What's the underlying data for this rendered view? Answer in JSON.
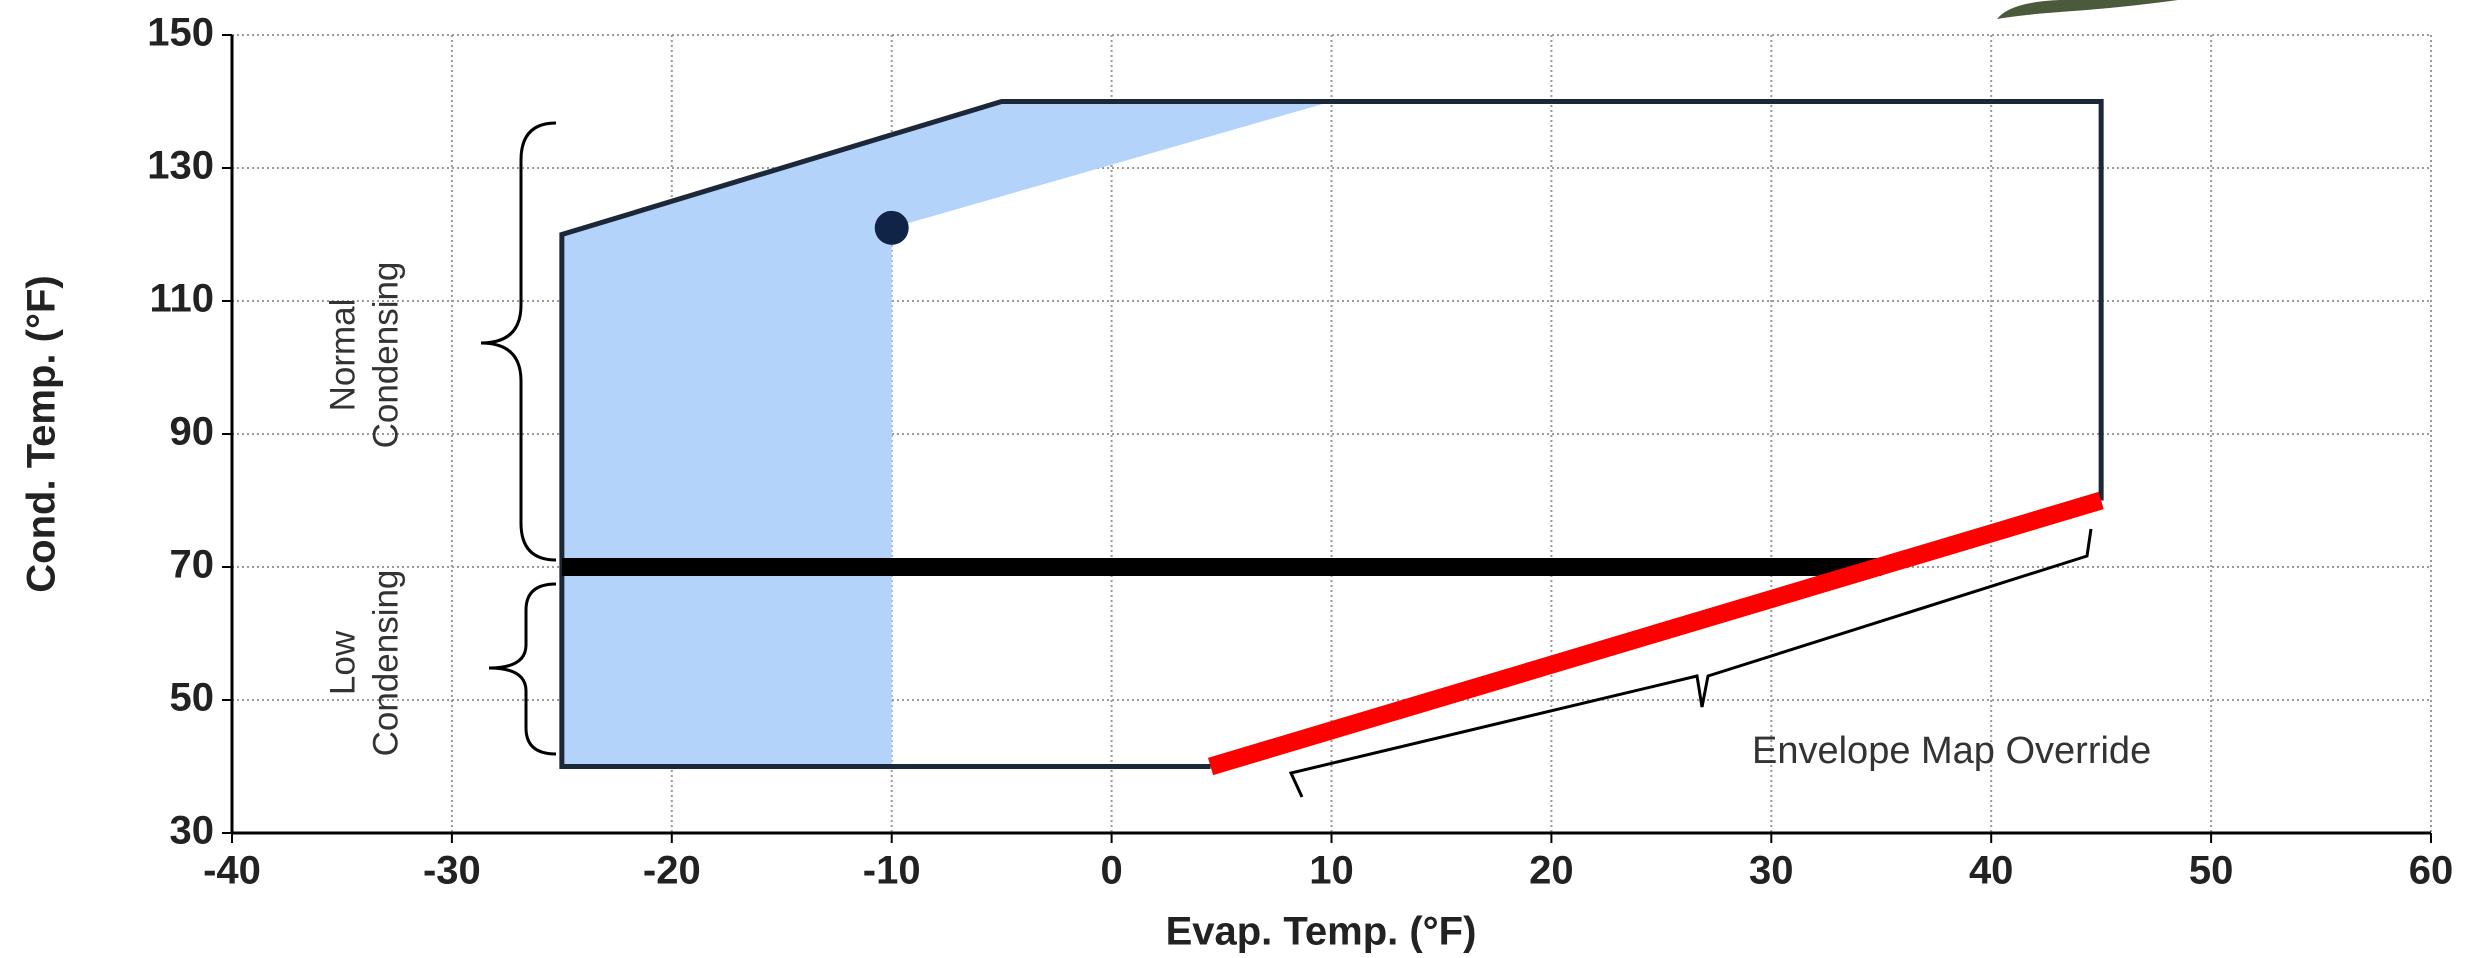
{
  "chart_data": {
    "type": "envelope",
    "x_label": "Evap. Temp. (°F)",
    "y_label": "Cond. Temp. (°F)",
    "xlim": [
      -40,
      60
    ],
    "ylim": [
      30,
      150
    ],
    "xticks": [
      -40,
      -30,
      -20,
      -10,
      0,
      10,
      20,
      30,
      40,
      50,
      60
    ],
    "yticks": [
      30,
      50,
      70,
      90,
      110,
      130,
      150
    ],
    "grid": true,
    "series": [
      {
        "type": "area",
        "color": "#b3d3fb",
        "x": [
          -25,
          -25,
          -5,
          10,
          -10,
          -10
        ],
        "values": [
          40,
          120,
          140,
          140,
          121,
          40
        ]
      },
      {
        "type": "line",
        "color": "#1c2838",
        "x": [
          4.5,
          -25,
          -25,
          -5,
          45,
          45
        ],
        "values": [
          40,
          40,
          120,
          140,
          140,
          80
        ]
      },
      {
        "type": "line",
        "color": "#000000",
        "x": [
          -25,
          35
        ],
        "values": [
          70,
          70
        ]
      },
      {
        "type": "line",
        "color": "#ff0000",
        "x": [
          4.5,
          45
        ],
        "values": [
          40,
          80
        ]
      },
      {
        "type": "scatter",
        "color": "#0f2446",
        "x": [
          -10
        ],
        "values": [
          121
        ]
      }
    ],
    "annotations": [
      [
        "Normal",
        "Condensing"
      ],
      [
        "Low",
        "Condensing"
      ],
      [
        "Envelope Map Override"
      ]
    ]
  }
}
